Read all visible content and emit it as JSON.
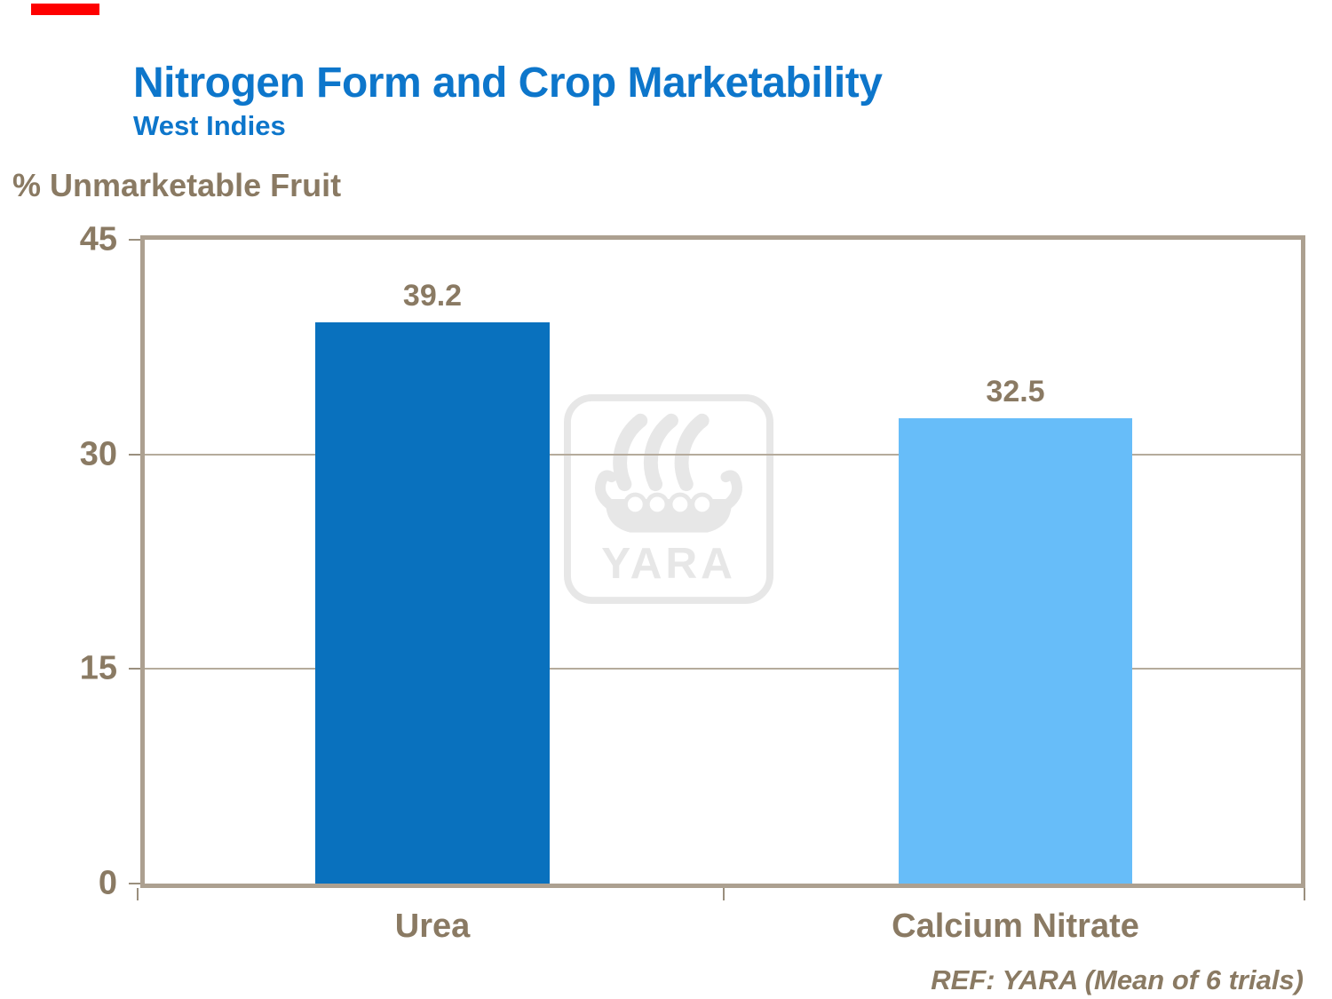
{
  "header": {
    "title": "Nitrogen Form and Crop Marketability",
    "subtitle": "West Indies"
  },
  "chart_data": {
    "type": "bar",
    "title": "Nitrogen Form and Crop Marketability",
    "subtitle": "West Indies",
    "ylabel": "% Unmarketable Fruit",
    "categories": [
      "Urea",
      "Calcium Nitrate"
    ],
    "values": [
      39.2,
      32.5
    ],
    "value_labels": [
      "39.2",
      "32.5"
    ],
    "bar_colors": [
      "#0971be",
      "#67bdf9"
    ],
    "ylim": [
      0,
      45
    ],
    "yticks": [
      0,
      15,
      30,
      45
    ],
    "grid": "horizontal gridlines at interior ticks",
    "legend_position": "none"
  },
  "footnote": {
    "ref": "REF: YARA (Mean of 6 trials)"
  },
  "watermark": {
    "name": "yara-viking-ship-logo",
    "text": "YARA",
    "color": "#e7e7e7"
  },
  "colors": {
    "title_blue": "#0d76cb",
    "text_brown": "#8a7a63",
    "frame_tan": "#aca090",
    "gridline_tan": "#b5ab9c",
    "tick_tan": "#9a8f7e",
    "red_accent": "#fe0000",
    "background": "#ffffff"
  }
}
